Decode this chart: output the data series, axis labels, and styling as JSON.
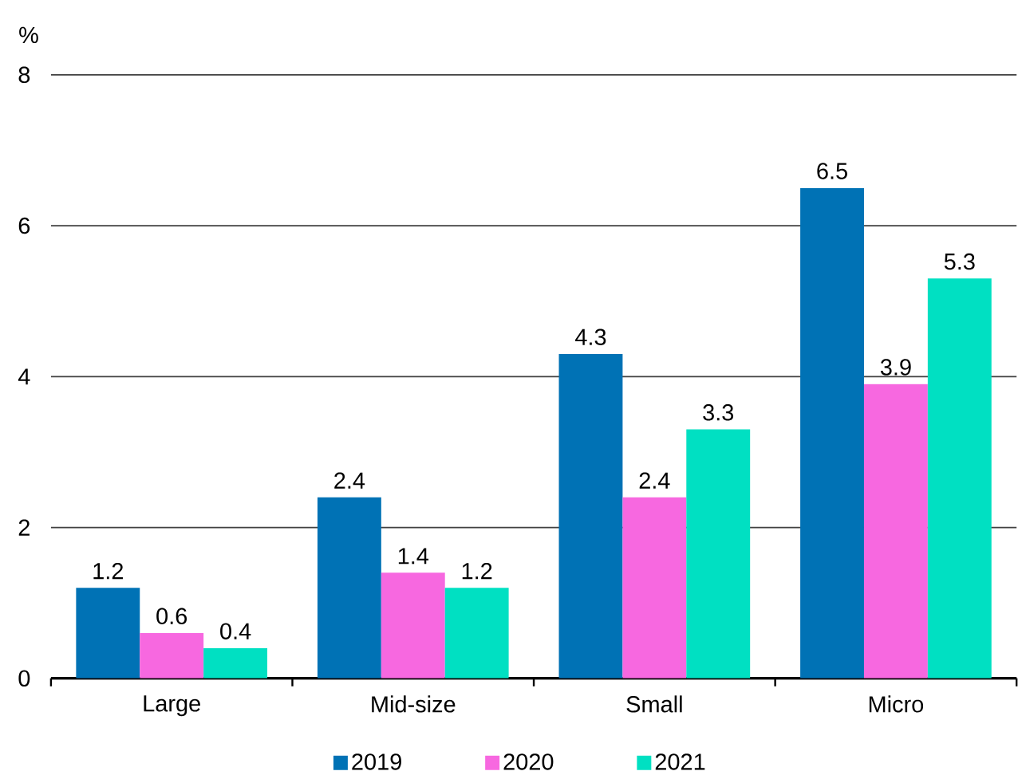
{
  "chart_data": {
    "type": "bar",
    "ylabel": "%",
    "categories": [
      "Large",
      "Mid-size",
      "Small",
      "Micro"
    ],
    "series": [
      {
        "name": "2019",
        "color": "#0072b5",
        "values": [
          1.2,
          2.4,
          4.3,
          6.5
        ]
      },
      {
        "name": "2020",
        "color": "#f768e0",
        "values": [
          0.6,
          1.4,
          2.4,
          3.9
        ]
      },
      {
        "name": "2021",
        "color": "#00e0c2",
        "values": [
          0.4,
          1.2,
          3.3,
          5.3
        ]
      }
    ],
    "ylim": [
      0,
      8
    ],
    "yticks": [
      0,
      2,
      4,
      6,
      8
    ],
    "grid": "y",
    "legend": "bottom",
    "data_labels": true
  }
}
